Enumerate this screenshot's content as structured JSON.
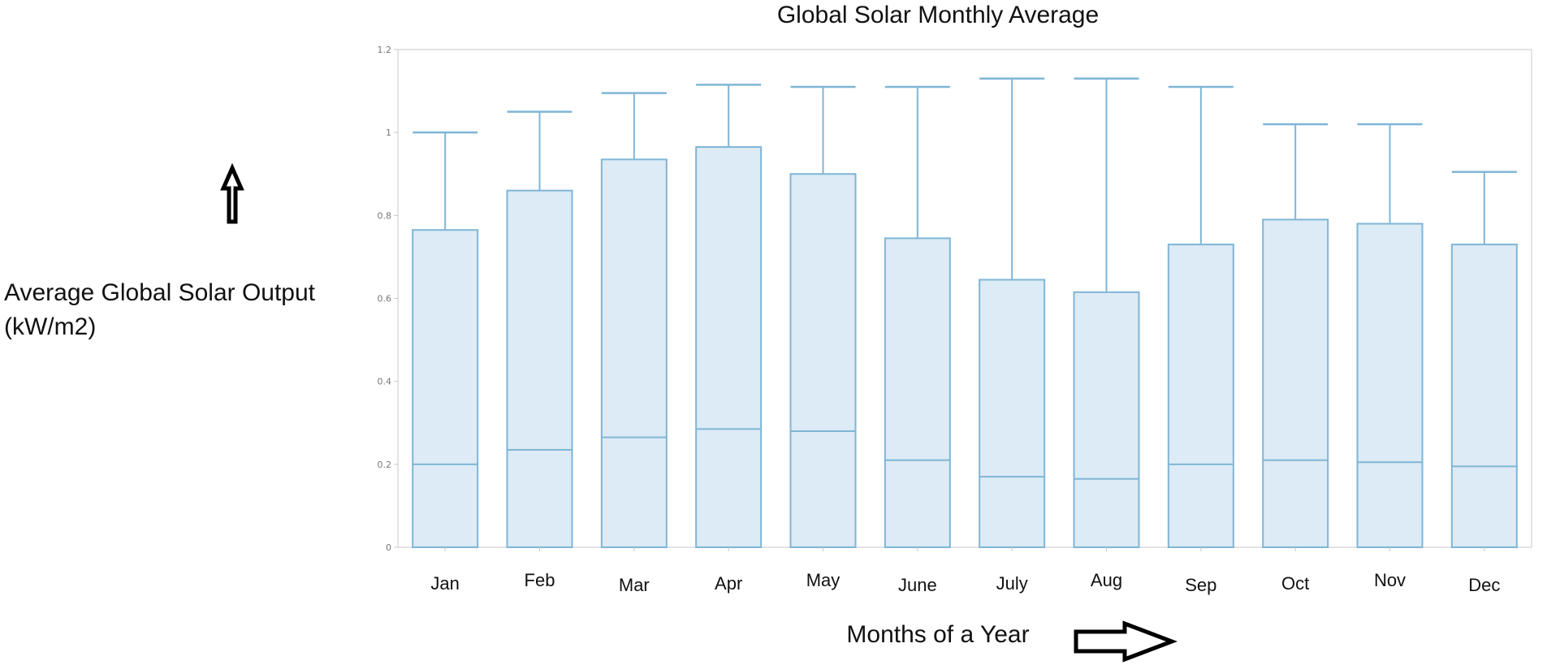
{
  "chart_data": {
    "type": "box",
    "title": "Global Solar Monthly Average",
    "ylabel": "Average Global Solar Output (kW/m2)",
    "ylabel_lines": [
      "Average Global Solar Output",
      "(kW/m2)"
    ],
    "xlabel": "Months of a Year",
    "ylim": [
      0,
      1.2
    ],
    "yticks": [
      0,
      0.2,
      0.4,
      0.6,
      0.8,
      1,
      1.2
    ],
    "ytick_labels": [
      "0",
      "0.2",
      "0.4",
      "0.6",
      "0.8",
      "1",
      "1.2"
    ],
    "categories": [
      "Jan",
      "Feb",
      "Mar",
      "Apr",
      "May",
      "June",
      "July",
      "Aug",
      "Sep",
      "Oct",
      "Nov",
      "Dec"
    ],
    "series": [
      {
        "name": "Jan",
        "min": 0,
        "q1": 0,
        "median": 0.2,
        "q3": 0.765,
        "max": 1.0
      },
      {
        "name": "Feb",
        "min": 0,
        "q1": 0,
        "median": 0.235,
        "q3": 0.86,
        "max": 1.05
      },
      {
        "name": "Mar",
        "min": 0,
        "q1": 0,
        "median": 0.265,
        "q3": 0.935,
        "max": 1.095
      },
      {
        "name": "Apr",
        "min": 0,
        "q1": 0,
        "median": 0.285,
        "q3": 0.965,
        "max": 1.115
      },
      {
        "name": "May",
        "min": 0,
        "q1": 0,
        "median": 0.28,
        "q3": 0.9,
        "max": 1.11
      },
      {
        "name": "June",
        "min": 0,
        "q1": 0,
        "median": 0.21,
        "q3": 0.745,
        "max": 1.11
      },
      {
        "name": "July",
        "min": 0,
        "q1": 0,
        "median": 0.17,
        "q3": 0.645,
        "max": 1.13
      },
      {
        "name": "Aug",
        "min": 0,
        "q1": 0,
        "median": 0.165,
        "q3": 0.615,
        "max": 1.13
      },
      {
        "name": "Sep",
        "min": 0,
        "q1": 0,
        "median": 0.2,
        "q3": 0.73,
        "max": 1.11
      },
      {
        "name": "Oct",
        "min": 0,
        "q1": 0,
        "median": 0.21,
        "q3": 0.79,
        "max": 1.02
      },
      {
        "name": "Nov",
        "min": 0,
        "q1": 0,
        "median": 0.205,
        "q3": 0.78,
        "max": 1.02
      },
      {
        "name": "Dec",
        "min": 0,
        "q1": 0,
        "median": 0.195,
        "q3": 0.73,
        "max": 0.905
      }
    ],
    "grid": false
  },
  "colors": {
    "box_fill": "#dcebf5",
    "box_stroke": "#7fb6d6"
  },
  "icons": {
    "up_arrow": "up-arrow-icon",
    "right_arrow": "right-arrow-icon"
  }
}
